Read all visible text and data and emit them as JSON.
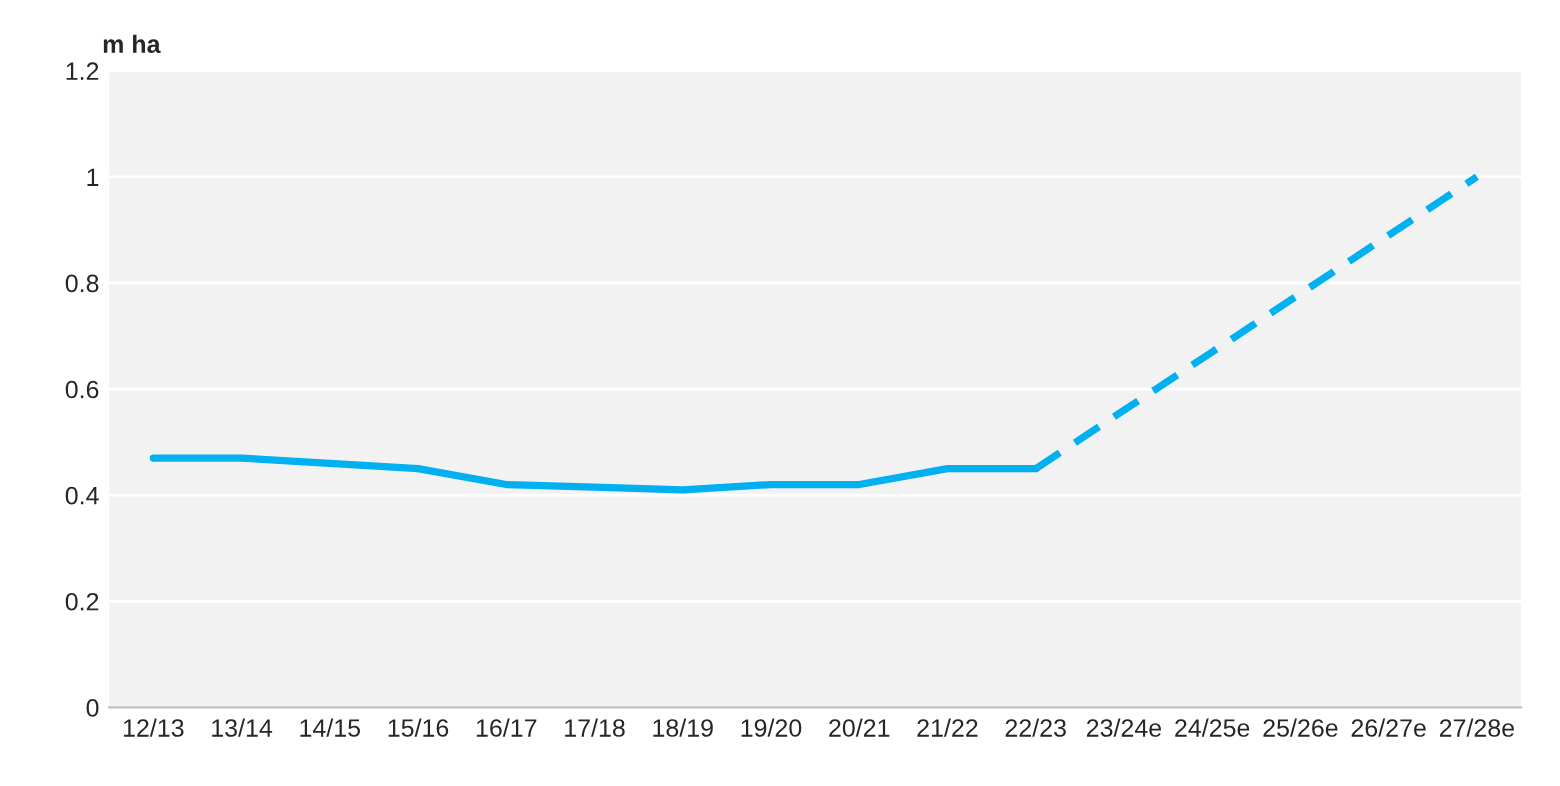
{
  "chart_data": {
    "type": "line",
    "ylabel": "m ha",
    "categories": [
      "12/13",
      "13/14",
      "14/15",
      "15/16",
      "16/17",
      "17/18",
      "18/19",
      "19/20",
      "20/21",
      "21/22",
      "22/23",
      "23/24e",
      "24/25e",
      "25/26e",
      "26/27e",
      "27/28e"
    ],
    "series": [
      {
        "color": "#00b0f0",
        "line_style": "solid",
        "values": [
          0.47,
          0.47,
          0.46,
          0.45,
          0.42,
          0.415,
          0.41,
          0.42,
          0.42,
          0.45,
          0.45,
          null,
          null,
          null,
          null,
          null
        ]
      },
      {
        "color": "#00b0f0",
        "line_style": "dashed",
        "values": [
          null,
          null,
          null,
          null,
          null,
          null,
          null,
          null,
          null,
          null,
          0.45,
          0.56,
          0.67,
          0.78,
          0.89,
          1.0
        ]
      }
    ],
    "ylim": [
      0,
      1.2
    ],
    "yticks": [
      0,
      0.2,
      0.4,
      0.6,
      0.8,
      1,
      1.2
    ],
    "grid": "y",
    "legend": false,
    "marker": "none"
  }
}
